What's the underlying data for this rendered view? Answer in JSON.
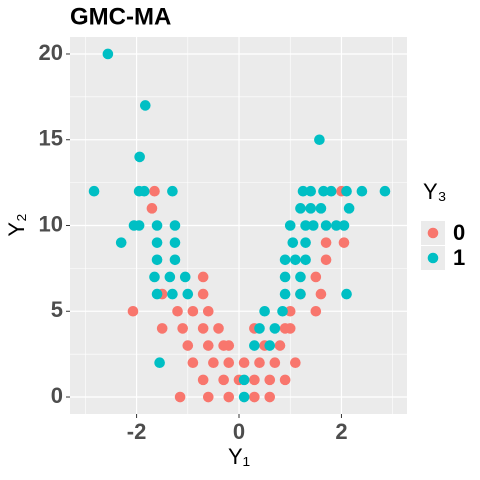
{
  "chart_data": {
    "type": "scatter",
    "title": "GMC-MA",
    "x_label": "Y₁",
    "y_label": "Y₂",
    "legend_title": "Y₃",
    "xlim": [
      -3.3,
      3.28
    ],
    "ylim": [
      -0.99,
      20.99
    ],
    "xticks": [
      -2,
      0,
      2
    ],
    "yticks": [
      0,
      5,
      10,
      15,
      20
    ],
    "grid": true,
    "legend": "right",
    "series": [
      {
        "name": "0",
        "color": "#F8766D",
        "x": [
          -2.07,
          -1.7,
          -1.65,
          -0.7,
          -0.7,
          -1.5,
          -1.2,
          -0.9,
          -0.6,
          -1.5,
          -1.1,
          -0.7,
          -0.4,
          -1.0,
          -0.6,
          -0.3,
          -0.9,
          -0.5,
          -0.2,
          0.1,
          0.4,
          0.7,
          -0.7,
          -0.3,
          0,
          0.3,
          0.6,
          0.9,
          -1.15,
          -0.6,
          -0.2,
          0.3,
          0.6,
          0.9,
          1.0,
          0.5,
          0.8,
          1.0,
          1.5,
          1.5,
          1.2,
          1.7,
          2.05,
          1.7,
          2.0,
          1.6,
          0.3,
          -0.2,
          1.1
        ],
        "values": [
          5,
          11,
          12,
          7,
          6,
          6,
          5,
          5,
          5,
          4,
          4,
          4,
          4,
          3,
          3,
          3,
          2,
          2,
          2,
          2,
          2,
          2,
          1,
          1,
          1,
          1,
          1,
          1,
          0,
          0,
          0,
          0,
          0,
          4,
          4,
          3,
          3,
          5,
          5,
          7,
          6,
          8,
          9,
          9,
          12,
          6,
          4,
          3,
          2
        ]
      },
      {
        "name": "1",
        "color": "#00BFC4",
        "x": [
          -2.56,
          -1.83,
          -1.94,
          1.57,
          -2.83,
          -1.95,
          -1.85,
          -1.3,
          -2.05,
          -1.95,
          -1.6,
          -1.25,
          -2.3,
          -1.6,
          -1.25,
          -1.6,
          -1.25,
          -1.65,
          -1.35,
          -1.05,
          -1.6,
          -1.3,
          -1.0,
          1.25,
          1.4,
          1.65,
          1.8,
          2.1,
          2.4,
          2.85,
          1.2,
          1.4,
          1.6,
          2.15,
          1.0,
          1.3,
          1.45,
          1.7,
          1.9,
          2.05,
          1.05,
          1.3,
          0.9,
          1.1,
          1.3,
          0.9,
          1.2,
          0.9,
          1.2,
          2.1,
          0.5,
          0.85,
          0.4,
          0.7,
          0.3,
          0.6,
          -1.55,
          0.1,
          0.1
        ],
        "values": [
          20,
          17,
          14,
          15,
          12,
          12,
          12,
          12,
          10,
          10,
          10,
          10,
          9,
          9,
          9,
          8,
          8,
          7,
          7,
          7,
          6,
          6,
          6,
          12,
          12,
          12,
          12,
          12,
          12,
          12,
          11,
          11,
          11,
          11,
          10,
          10,
          10,
          10,
          10,
          10,
          9,
          9,
          8,
          8,
          8,
          7,
          7,
          6,
          6,
          6,
          5,
          5,
          4,
          4,
          3,
          3,
          2,
          1,
          0
        ]
      }
    ]
  }
}
